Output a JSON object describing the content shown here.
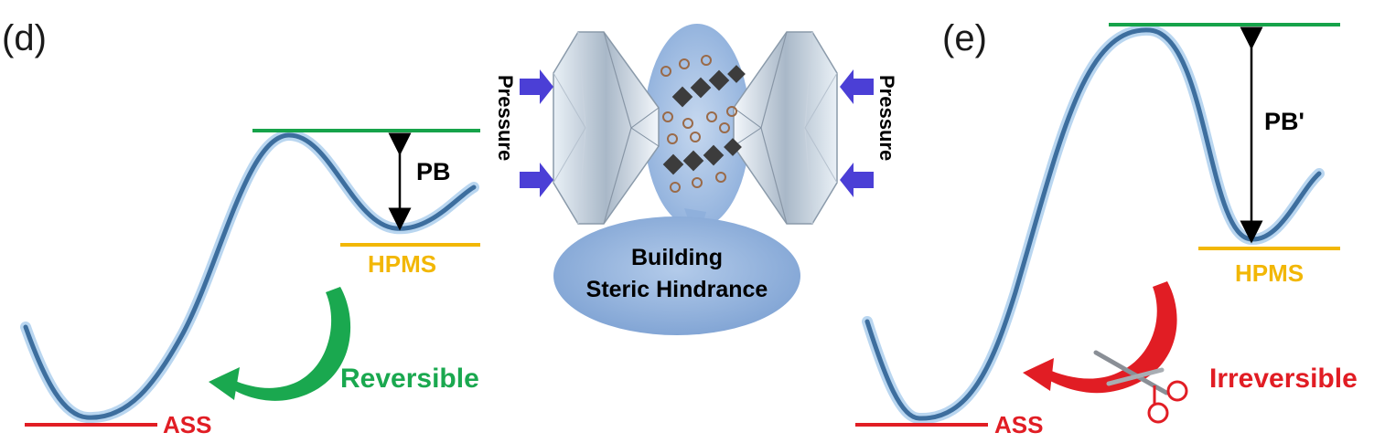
{
  "panel_d": {
    "label": "(d)",
    "metastable_label": "HPMS",
    "ground_label": "ASS",
    "barrier_label": "PB",
    "transition_label": "Reversible"
  },
  "center": {
    "pressure_left": "Pressure",
    "pressure_right": "Pressure",
    "callout_line1": "Building",
    "callout_line2": "Steric Hindrance"
  },
  "panel_e": {
    "label": "(e)",
    "metastable_label": "HPMS",
    "ground_label": "ASS",
    "barrier_label": "PB'",
    "transition_label": "Irreversible"
  },
  "colors": {
    "curve": "#3d6e9e",
    "curve_glow": "#b9d6f0",
    "barrier_top": "#16a34a",
    "metastable": "#f2b705",
    "ground": "#e11d24",
    "reversible": "#1aa84f",
    "irreversible": "#e11d24",
    "pressure_arrow": "#4b3fd6",
    "callout": "#8fb0dc"
  },
  "icons": [
    "diamond-anvil-left",
    "diamond-anvil-right",
    "scissors-icon",
    "pressure-arrow"
  ]
}
